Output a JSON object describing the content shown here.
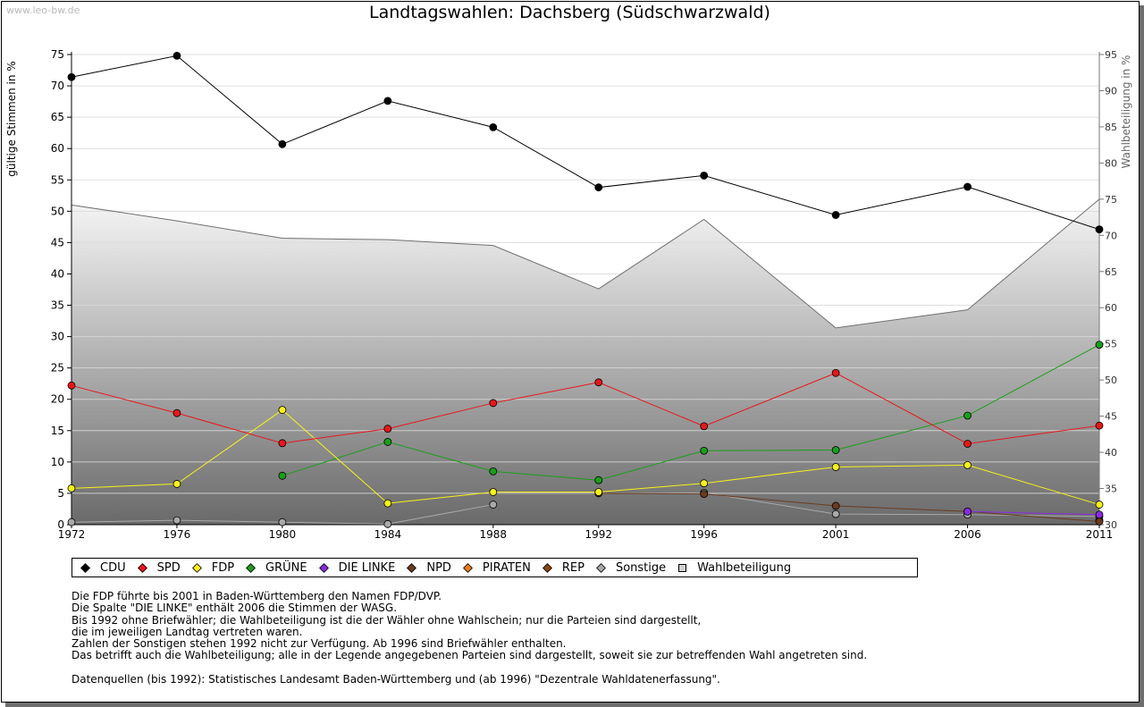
{
  "header": {
    "watermark": "www.leo-bw.de",
    "title": "Landtagswahlen: Dachsberg (Südschwarzwald)"
  },
  "chart_data": {
    "type": "line",
    "title": "Landtagswahlen: Dachsberg (Südschwarzwald)",
    "xlabel": "",
    "ylabel": "gültige Stimmen in %",
    "y2label": "Wahlbeteiligung in %",
    "ylim": [
      0,
      75
    ],
    "y2lim": [
      30,
      95
    ],
    "yticks": [
      0,
      5,
      10,
      15,
      20,
      25,
      30,
      35,
      40,
      45,
      50,
      55,
      60,
      65,
      70,
      75
    ],
    "y2ticks": [
      30,
      35,
      40,
      45,
      50,
      55,
      60,
      65,
      70,
      75,
      80,
      85,
      90,
      95
    ],
    "categories": [
      "1972",
      "1976",
      "1980",
      "1984",
      "1988",
      "1992",
      "1996",
      "2001",
      "2006",
      "2011"
    ],
    "series": [
      {
        "name": "CDU",
        "color": "#000000",
        "values": [
          71.4,
          74.8,
          60.7,
          67.6,
          63.4,
          53.8,
          55.7,
          49.4,
          53.9,
          47.1
        ]
      },
      {
        "name": "SPD",
        "color": "#e8161b",
        "values": [
          22.2,
          17.8,
          13.0,
          15.3,
          19.4,
          22.7,
          15.7,
          24.2,
          12.9,
          15.8
        ]
      },
      {
        "name": "FDP",
        "color": "#f7f21b",
        "values": [
          5.8,
          6.5,
          18.3,
          3.4,
          5.2,
          5.2,
          6.6,
          9.2,
          9.5,
          3.2
        ]
      },
      {
        "name": "GRÜNE",
        "color": "#1b9e1b",
        "values": [
          null,
          null,
          7.8,
          13.2,
          8.5,
          7.1,
          11.8,
          11.9,
          17.4,
          28.7
        ]
      },
      {
        "name": "DIE LINKE",
        "color": "#8a2be2",
        "values": [
          null,
          null,
          null,
          null,
          null,
          null,
          null,
          null,
          2.1,
          1.6
        ]
      },
      {
        "name": "NPD",
        "color": "#6b3b1e",
        "values": [
          null,
          null,
          null,
          null,
          null,
          5.0,
          4.9,
          3.0,
          2.1,
          0.5
        ]
      },
      {
        "name": "PIRATEN",
        "color": "#f07c1b",
        "values": [
          null,
          null,
          null,
          null,
          null,
          null,
          null,
          null,
          null,
          0.7
        ]
      },
      {
        "name": "REP",
        "color": "#8b4513",
        "values": [
          null,
          null,
          null,
          null,
          null,
          null,
          null,
          null,
          null,
          null
        ]
      },
      {
        "name": "Sonstige",
        "color": "#a9a9a9",
        "values": [
          0.4,
          0.7,
          0.4,
          0.1,
          3.2,
          null,
          5.1,
          1.7,
          1.6,
          1.3
        ]
      }
    ],
    "turnout": {
      "name": "Wahlbeteiligung",
      "values": [
        74.2,
        72.0,
        69.6,
        69.4,
        68.6,
        62.6,
        72.2,
        57.2,
        59.7,
        75.0
      ]
    }
  },
  "legend": {
    "items": [
      {
        "label": "CDU",
        "color": "#000000",
        "shape": "diamond",
        "icon": "diamond-icon"
      },
      {
        "label": "SPD",
        "color": "#e8161b",
        "shape": "diamond",
        "icon": "diamond-icon"
      },
      {
        "label": "FDP",
        "color": "#f7f21b",
        "shape": "diamond",
        "icon": "diamond-icon"
      },
      {
        "label": "GRÜNE",
        "color": "#1b9e1b",
        "shape": "diamond",
        "icon": "diamond-icon"
      },
      {
        "label": "DIE LINKE",
        "color": "#8a2be2",
        "shape": "diamond",
        "icon": "diamond-icon"
      },
      {
        "label": "NPD",
        "color": "#6b3b1e",
        "shape": "diamond",
        "icon": "diamond-icon"
      },
      {
        "label": "PIRATEN",
        "color": "#f07c1b",
        "shape": "diamond",
        "icon": "diamond-icon"
      },
      {
        "label": "REP",
        "color": "#8b4513",
        "shape": "diamond",
        "icon": "diamond-icon"
      },
      {
        "label": "Sonstige",
        "color": "#a9a9a9",
        "shape": "diamond",
        "icon": "diamond-icon"
      },
      {
        "label": "Wahlbeteiligung",
        "color": "#d0d0d0",
        "shape": "square",
        "icon": "square-icon"
      }
    ]
  },
  "notes": {
    "lines": [
      "Die FDP führte bis 2001 in Baden-Württemberg den Namen FDP/DVP.",
      "Die Spalte \"DIE LINKE\" enthält 2006 die Stimmen der WASG.",
      "Bis 1992 ohne Briefwähler; die Wahlbeteiligung ist die der Wähler ohne Wahlschein; nur die Parteien sind dargestellt,",
      "die im jeweiligen Landtag vertreten waren.",
      "Zahlen der Sonstigen stehen 1992 nicht zur Verfügung. Ab 1996 sind Briefwähler enthalten.",
      "Das betrifft auch die Wahlbeteiligung; alle in der Legende angegebenen Parteien sind dargestellt, soweit sie zur betreffenden Wahl angetreten sind."
    ],
    "source": "Datenquellen (bis 1992): Statistisches Landesamt Baden-Württemberg und (ab 1996) \"Dezentrale Wahldatenerfassung\"."
  }
}
